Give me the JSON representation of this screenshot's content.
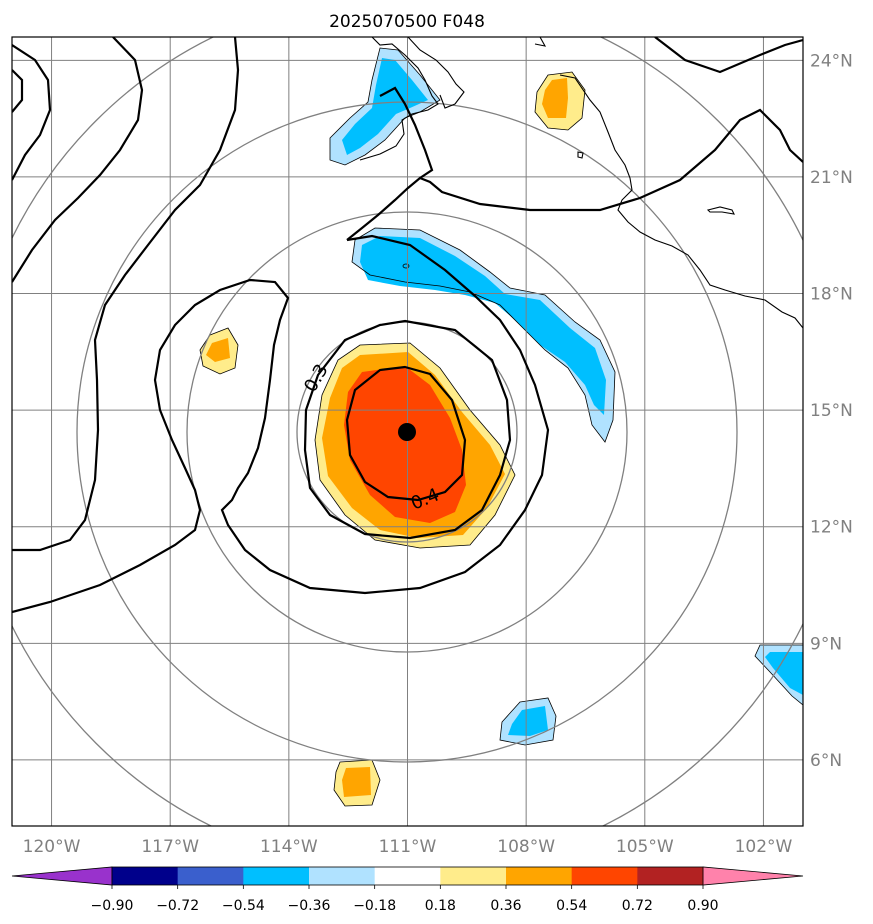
{
  "chart_data": {
    "type": "heatmap",
    "title": "2025070500 F048",
    "map": {
      "lon_range": [
        -121,
        -101
      ],
      "lat_range": [
        4.3,
        24.6
      ],
      "lon_ticks": [
        -120,
        -117,
        -114,
        -111,
        -108,
        -105,
        -102
      ],
      "lon_tick_labels": [
        "120°W",
        "117°W",
        "114°W",
        "111°W",
        "108°W",
        "105°W",
        "102°W"
      ],
      "lat_ticks": [
        6,
        9,
        12,
        15,
        18,
        21,
        24
      ],
      "lat_tick_labels": [
        "6°N",
        "9°N",
        "12°N",
        "15°N",
        "18°N",
        "21°N",
        "24°N"
      ],
      "grid": true,
      "coastlines": true,
      "lat_labels_side": "right",
      "range_rings": true
    },
    "storm_center": {
      "lon": -111.0,
      "lat": 14.6
    },
    "contour_labels": [
      {
        "text": "0.3",
        "lon": -113.2,
        "lat": 16.0
      },
      {
        "text": "0.4",
        "lon": -110.5,
        "lat": 13.0
      }
    ],
    "colorbar": {
      "levels": [
        -0.9,
        -0.72,
        -0.54,
        -0.36,
        -0.18,
        0.18,
        0.36,
        0.54,
        0.72,
        0.9
      ],
      "tick_labels": [
        "−0.90",
        "−0.72",
        "−0.54",
        "−0.36",
        "−0.18",
        "0.18",
        "0.36",
        "0.54",
        "0.72",
        "0.90"
      ],
      "colors": [
        "#9932cc",
        "#00008b",
        "#3a5fcd",
        "#00bfff",
        "#b0e2ff",
        "#ffffff",
        "#ffec8b",
        "#ffa500",
        "#ff4500",
        "#b22222",
        "#ff82ab"
      ],
      "extend": "both"
    },
    "shaded_features": [
      {
        "name": "core positive anomaly",
        "center": [
          -110.9,
          14.2
        ],
        "max_level": 0.72
      },
      {
        "name": "negative band NE",
        "center": [
          -108.0,
          17.8
        ],
        "min_level": -0.54
      },
      {
        "name": "negative area N",
        "center": [
          -111.5,
          22.8
        ],
        "min_level": -0.54
      },
      {
        "name": "small positive NE",
        "center": [
          -107.3,
          23.3
        ],
        "max_level": 0.54
      },
      {
        "name": "small positive W",
        "center": [
          -115.4,
          16.6
        ],
        "max_level": 0.54
      },
      {
        "name": "small positive S",
        "center": [
          -112.3,
          5.7
        ],
        "max_level": 0.54
      },
      {
        "name": "small negative S",
        "center": [
          -107.8,
          7.0
        ],
        "min_level": -0.54
      },
      {
        "name": "small negative E",
        "center": [
          -101.4,
          8.7
        ],
        "min_level": -0.54
      }
    ]
  }
}
